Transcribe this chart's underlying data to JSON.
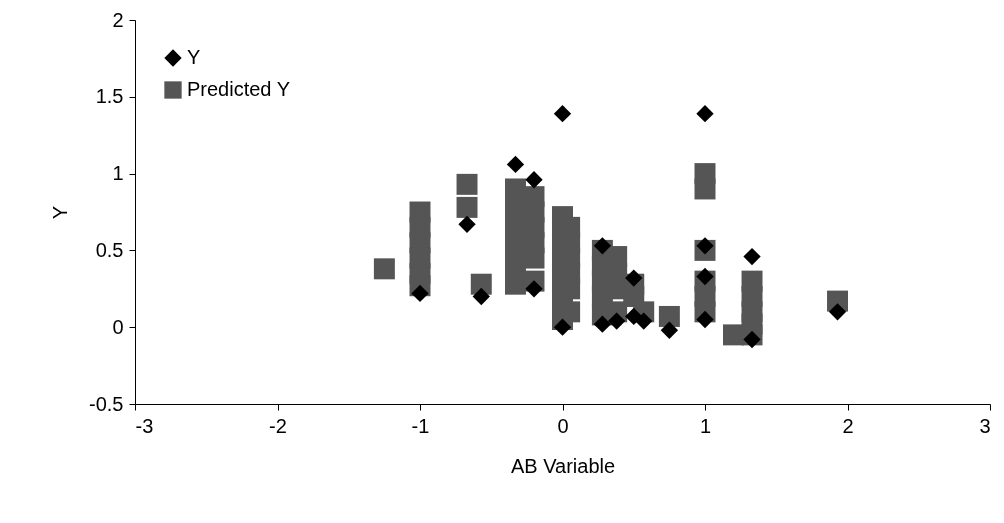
{
  "chart_data": {
    "type": "scatter",
    "xlabel": "AB Variable",
    "ylabel": "Y",
    "xlim": [
      -3,
      3
    ],
    "xticks": [
      -3,
      -2,
      -1,
      0,
      1,
      2,
      3
    ],
    "ylim": [
      -0.5,
      2
    ],
    "yticks": [
      -0.5,
      0,
      0.5,
      1,
      1.5,
      2
    ],
    "grid": false,
    "legend": "top left",
    "series": [
      {
        "name": "Y",
        "color": "#000000",
        "marker": "diamond",
        "x": [
          -1,
          -0.67,
          -0.57,
          -0.33,
          -0.2,
          -0.2,
          0,
          0,
          0.28,
          0.28,
          0.38,
          0.5,
          0.5,
          0.57,
          0.75,
          1,
          1,
          1,
          1,
          1.33,
          1.33,
          1.93
        ],
        "values": [
          0.22,
          0.67,
          0.2,
          1.06,
          0.96,
          0.25,
          1.39,
          0,
          0.53,
          0.02,
          0.04,
          0.32,
          0.07,
          0.04,
          -0.02,
          1.39,
          0.53,
          0.33,
          0.05,
          0.46,
          -0.08,
          0.1
        ]
      },
      {
        "name": "Predicted Y",
        "color": "#555555",
        "marker": "square",
        "x": [
          -1.25,
          -1,
          -1,
          -1,
          -1,
          -1,
          -1,
          -0.67,
          -0.67,
          -0.57,
          -0.33,
          -0.33,
          -0.33,
          -0.33,
          -0.33,
          -0.33,
          -0.33,
          -0.2,
          -0.2,
          -0.2,
          -0.2,
          -0.2,
          -0.2,
          0,
          0,
          0,
          0,
          0,
          0,
          0,
          0,
          0.05,
          0.05,
          0.05,
          0.05,
          0.05,
          0.05,
          0.28,
          0.28,
          0.28,
          0.28,
          0.28,
          0.38,
          0.38,
          0.38,
          0.38,
          0.5,
          0.5,
          0.57,
          0.75,
          1,
          1,
          1,
          1,
          1,
          1,
          1.2,
          1.33,
          1.33,
          1.33,
          1.33,
          1.33,
          1.93
        ],
        "values": [
          0.38,
          0.75,
          0.65,
          0.55,
          0.45,
          0.35,
          0.27,
          0.93,
          0.78,
          0.28,
          0.9,
          0.8,
          0.7,
          0.6,
          0.5,
          0.4,
          0.28,
          0.85,
          0.75,
          0.65,
          0.55,
          0.45,
          0.3,
          0.72,
          0.62,
          0.52,
          0.42,
          0.32,
          0.22,
          0.12,
          0.05,
          0.65,
          0.55,
          0.45,
          0.35,
          0.25,
          0.1,
          0.5,
          0.4,
          0.3,
          0.2,
          0.08,
          0.46,
          0.35,
          0.25,
          0.1,
          0.28,
          0.2,
          0.1,
          0.07,
          1,
          0.9,
          0.5,
          0.3,
          0.2,
          0.1,
          -0.05,
          0.3,
          0.2,
          0.1,
          0.02,
          -0.05,
          0.17
        ]
      }
    ]
  }
}
